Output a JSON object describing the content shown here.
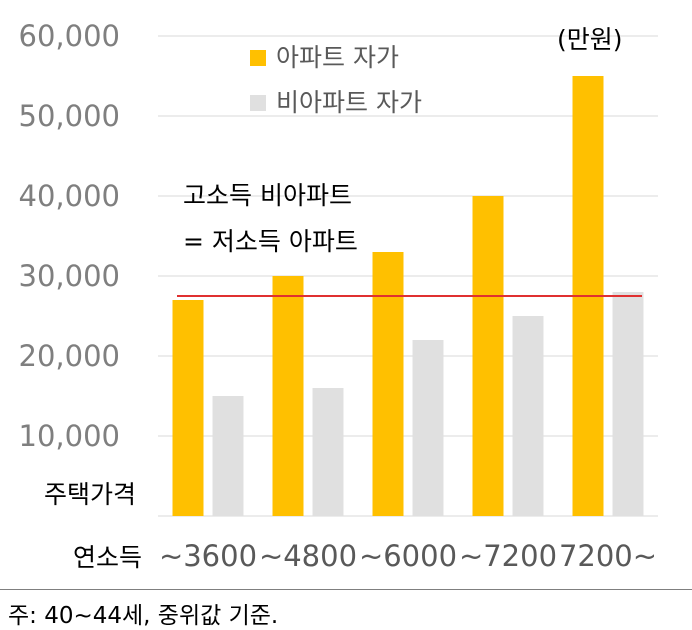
{
  "chart_data": {
    "type": "bar",
    "unit_label": "(만원)",
    "y_axis_label": "주택가격",
    "x_axis_label": "연소득",
    "categories": [
      "~3600",
      "~4800",
      "~6000",
      "~7200",
      "7200~"
    ],
    "series": [
      {
        "name": "아파트 자가",
        "color": "#ffc000",
        "values": [
          27000,
          30000,
          33000,
          40000,
          55000
        ]
      },
      {
        "name": "비아파트 자가",
        "color": "#e0e0e0",
        "values": [
          15000,
          16000,
          22000,
          25000,
          28000
        ]
      }
    ],
    "ylim": [
      0,
      60000
    ],
    "yticks": [
      "",
      "10,000",
      "20,000",
      "30,000",
      "40,000",
      "50,000",
      "60,000"
    ],
    "grid": true,
    "legend_position": "top",
    "reference_line": {
      "value": 27500,
      "color": "#e03030"
    },
    "annotation": [
      "고소득 비아파트",
      "= 저소득 아파트"
    ]
  },
  "footnote": "주: 40~44세, 중위값 기준."
}
